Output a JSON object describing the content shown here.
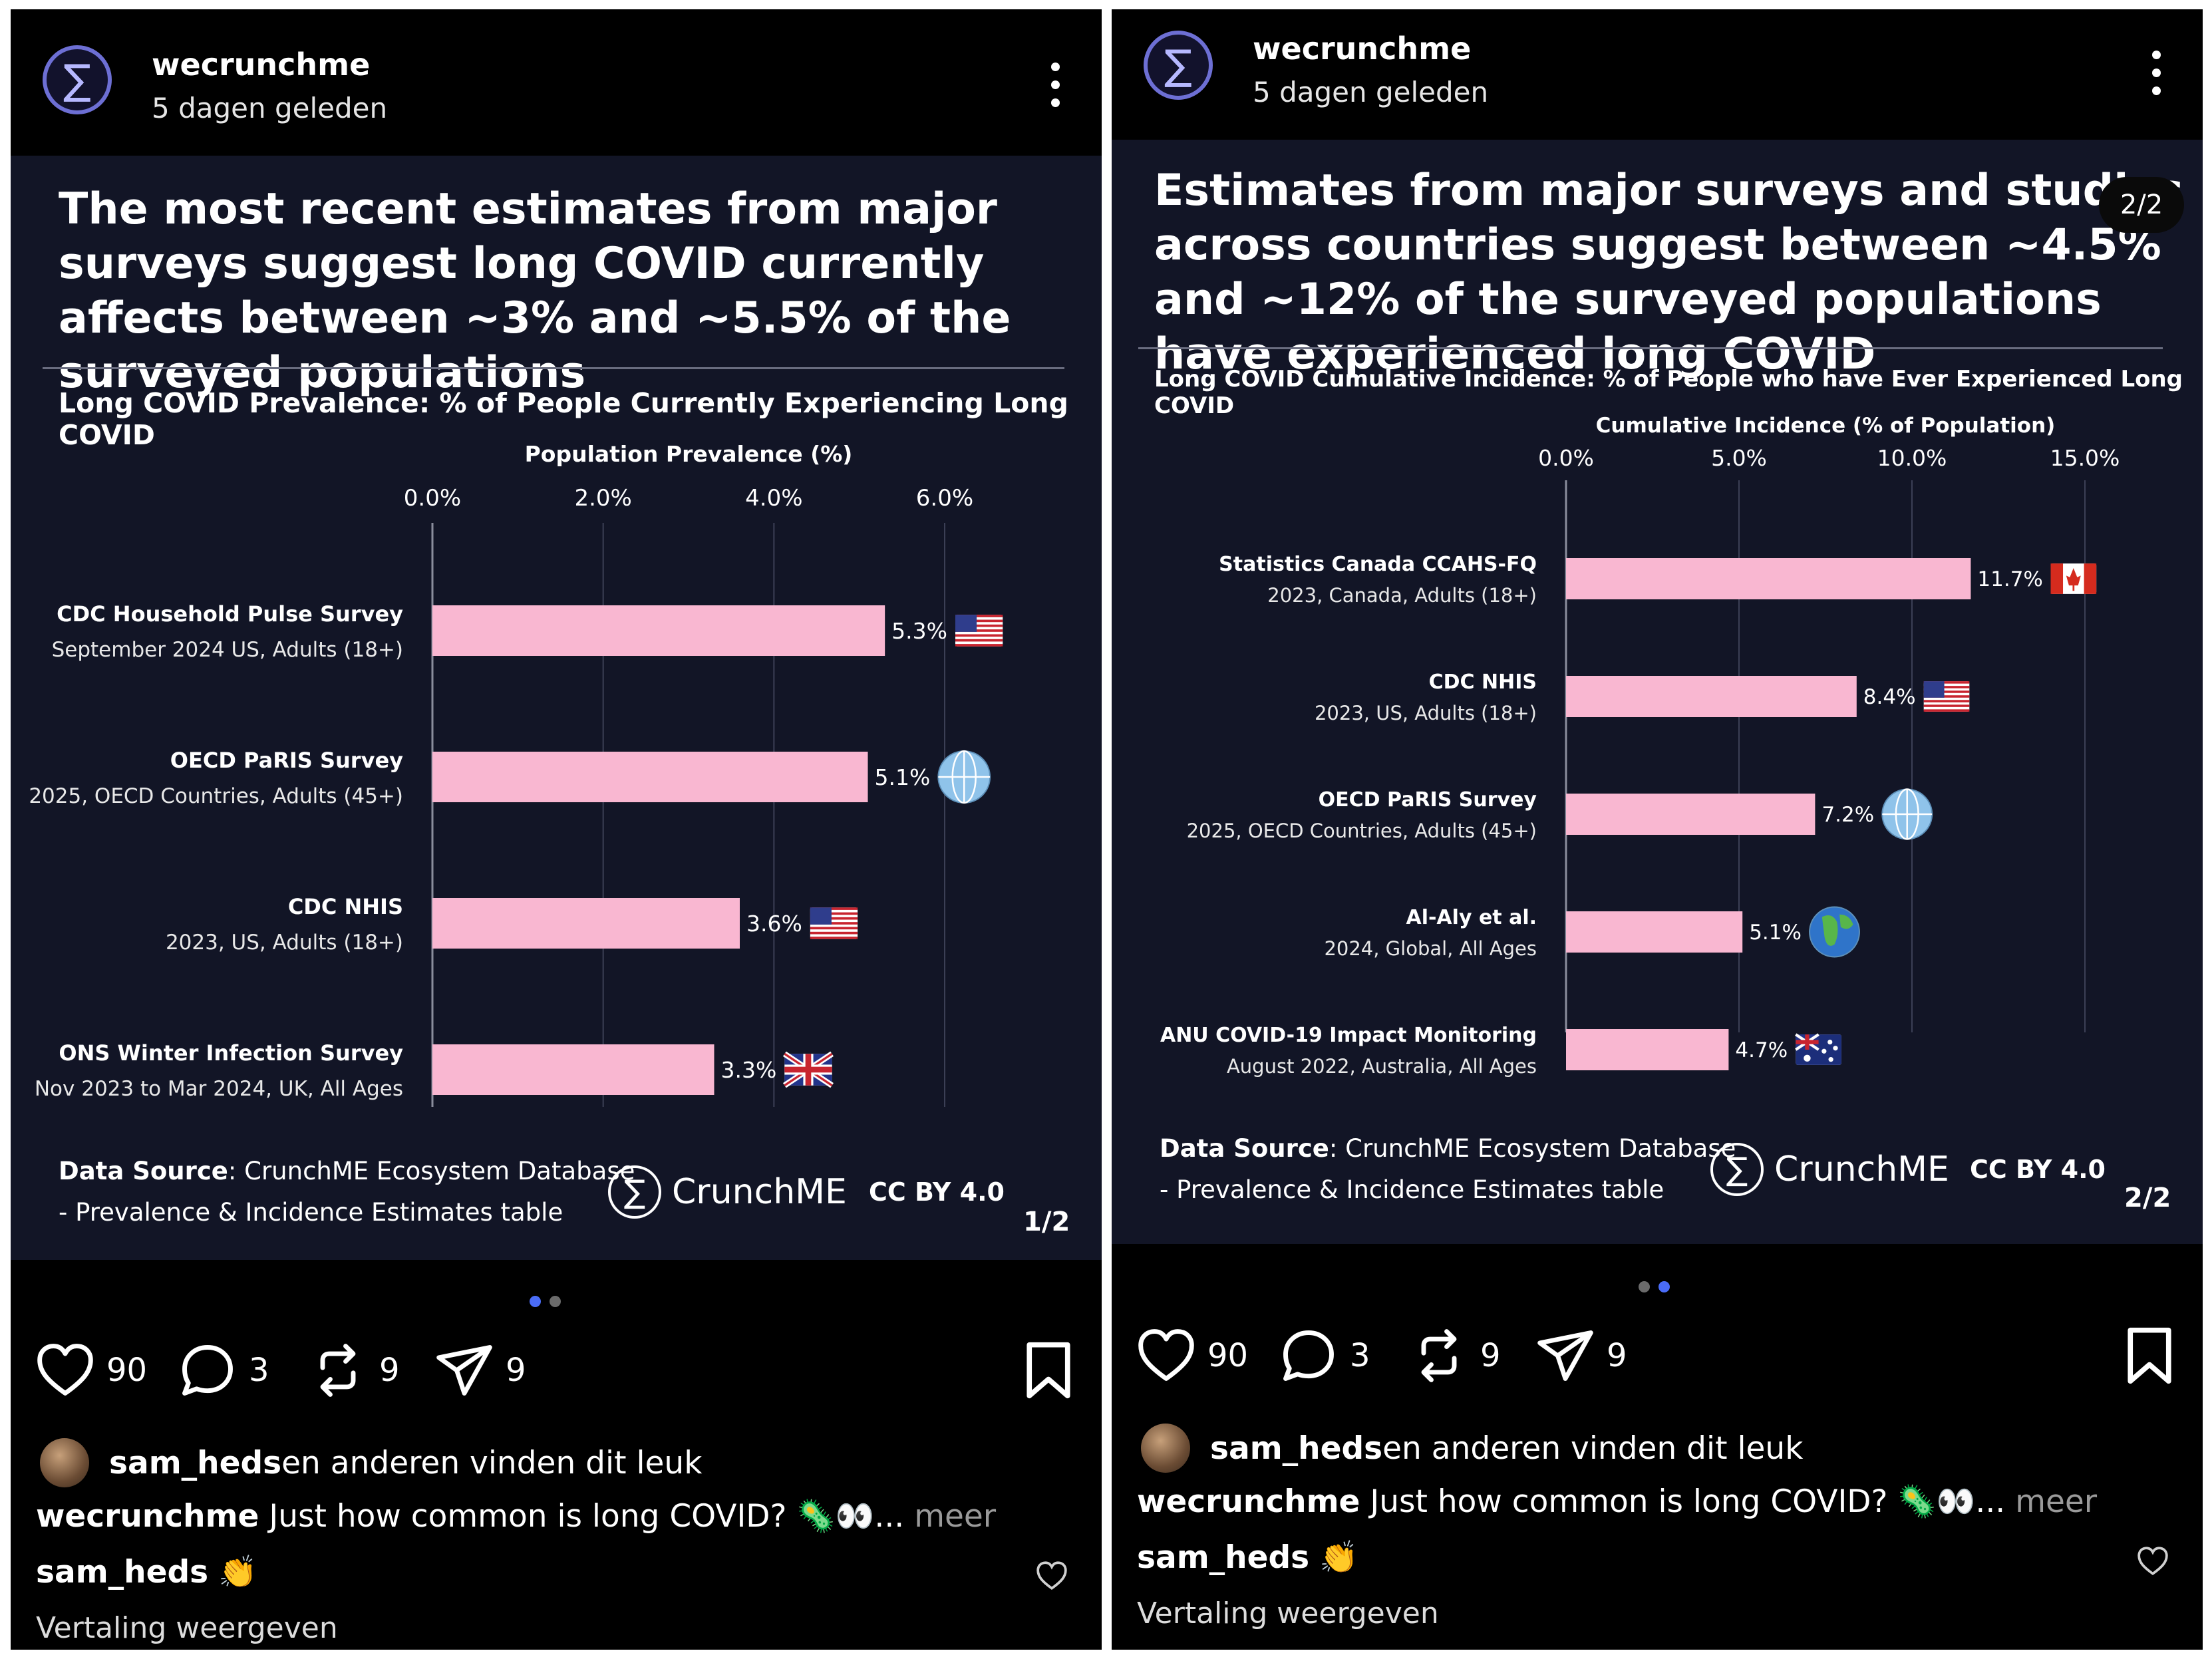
{
  "posts": [
    {
      "account": "wecrunchme",
      "time": "5 dagen geleden",
      "headline": "The most recent estimates from major surveys suggest long COVID currently affects between ~3% and ~5.5% of the surveyed populations",
      "chart_subtitle": "Long COVID Prevalence: % of People Currently Experiencing Long COVID",
      "data_source_label": "Data Source",
      "data_source_text": ": CrunchME Ecosystem Database",
      "data_source_line2": "- Prevalence & Incidence Estimates table",
      "brand": "CrunchME",
      "license": "CC BY 4.0",
      "page_label": "1/2",
      "likes": "90",
      "comments": "3",
      "reposts": "9",
      "shares": "9",
      "liked_by_user": "sam_heds",
      "liked_by_rest": " en anderen vinden dit leuk",
      "caption_user": "wecrunchme",
      "caption_text": " Just how common is long COVID? 🦠👀...",
      "caption_more": " meer",
      "comment_user": "sam_heds",
      "comment_text": " 👏",
      "translate": "Vertaling weergeven",
      "chart_data": {
        "type": "bar",
        "orientation": "horizontal",
        "title": "Long COVID Prevalence: % of People Currently Experiencing Long COVID",
        "xlabel": "Population Prevalence (%)",
        "xlim": [
          0,
          6.0
        ],
        "xticks": [
          "0.0%",
          "2.0%",
          "4.0%",
          "6.0%"
        ],
        "grid": true,
        "bar_color": "#f9b7d1",
        "categories": [
          "CDC Household Pulse Survey",
          "OECD PaRIS Survey",
          "CDC NHIS",
          "ONS Winter Infection Survey"
        ],
        "category_details": [
          "September 2024 US, Adults (18+)",
          "2025, OECD Countries, Adults (45+)",
          "2023, US, Adults (18+)",
          "Nov 2023 to Mar 2024, UK, All Ages"
        ],
        "values": [
          5.3,
          5.1,
          3.6,
          3.3
        ],
        "value_labels": [
          "5.3%",
          "5.1%",
          "3.6%",
          "3.3%"
        ],
        "flag_icons": [
          "us-flag-icon",
          "globe-icon",
          "us-flag-icon",
          "uk-flag-icon"
        ]
      }
    },
    {
      "account": "wecrunchme",
      "time": "5 dagen geleden",
      "headline": "Estimates from major surveys and studies across countries suggest between ~4.5% and ~12% of the surveyed populations have experienced long COVID",
      "chart_subtitle": "Long COVID Cumulative Incidence: % of People who have Ever Experienced Long COVID",
      "data_source_label": "Data Source",
      "data_source_text": ": CrunchME Ecosystem Database",
      "data_source_line2": "- Prevalence & Incidence Estimates table",
      "brand": "CrunchME",
      "license": "CC BY 4.0",
      "page_label": "2/2",
      "page_badge": "2/2",
      "likes": "90",
      "comments": "3",
      "reposts": "9",
      "shares": "9",
      "liked_by_user": "sam_heds",
      "liked_by_rest": " en anderen vinden dit leuk",
      "caption_user": "wecrunchme",
      "caption_text": " Just how common is long COVID? 🦠👀...",
      "caption_more": " meer",
      "comment_user": "sam_heds",
      "comment_text": " 👏",
      "translate": "Vertaling weergeven",
      "chart_data": {
        "type": "bar",
        "orientation": "horizontal",
        "title": "Long COVID Cumulative Incidence: % of People who have Ever Experienced Long COVID",
        "xlabel": "Cumulative Incidence (% of Population)",
        "xlim": [
          0,
          15.0
        ],
        "xticks": [
          "0.0%",
          "5.0%",
          "10.0%",
          "15.0%"
        ],
        "grid": true,
        "bar_color": "#f9b7d1",
        "categories": [
          "Statistics Canada CCAHS-FQ",
          "CDC NHIS",
          "OECD PaRIS Survey",
          "Al-Aly et al.",
          "ANU COVID-19 Impact Monitoring"
        ],
        "category_details": [
          "2023, Canada, Adults (18+)",
          "2023, US, Adults (18+)",
          "2025, OECD Countries, Adults (45+)",
          "2024, Global, All Ages",
          "August 2022, Australia, All Ages"
        ],
        "values": [
          11.7,
          8.4,
          7.2,
          5.1,
          4.7
        ],
        "value_labels": [
          "11.7%",
          "8.4%",
          "7.2%",
          "5.1%",
          "4.7%"
        ],
        "flag_icons": [
          "canada-flag-icon",
          "us-flag-icon",
          "globe-icon",
          "earth-icon",
          "australia-flag-icon"
        ]
      }
    }
  ],
  "colors": {
    "card_bg": "#121526",
    "bar": "#f9b7d1",
    "accent_dot": "#4a6cf7",
    "inactive_dot": "#6b6b6b",
    "logo_ring": "#6d6fd4"
  }
}
